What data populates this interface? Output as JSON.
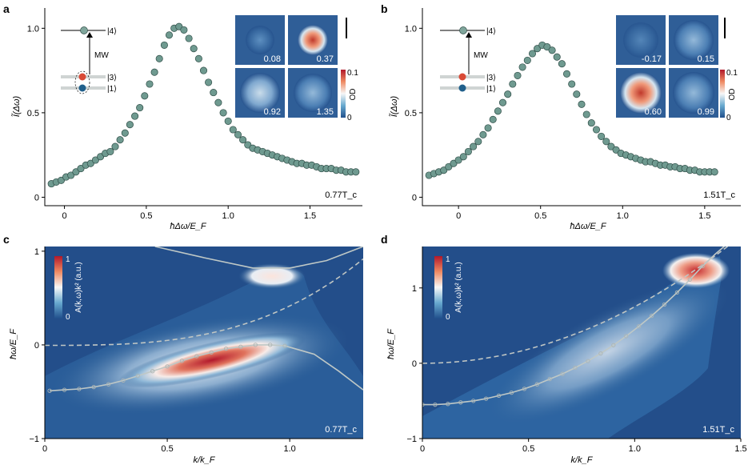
{
  "chart_data": [
    {
      "id": "a",
      "type": "scatter",
      "panel_label": "a",
      "xlabel": "ħΔω/E_F",
      "ylabel": "Ĩ(Δω)",
      "xlim": [
        -0.12,
        1.82
      ],
      "ylim": [
        -0.05,
        1.12
      ],
      "xticks": [
        0,
        0.5,
        1.0,
        1.5
      ],
      "xticklabels": [
        "0",
        "0.5",
        "1.0",
        "1.5"
      ],
      "yticks": [
        0,
        0.5,
        1.0
      ],
      "yticklabels": [
        "0",
        "0.5",
        "1.0"
      ],
      "temperature_label": "0.77T_c",
      "series": [
        {
          "x": [
            -0.08,
            -0.05,
            -0.02,
            0.01,
            0.04,
            0.07,
            0.1,
            0.13,
            0.16,
            0.19,
            0.22,
            0.25,
            0.28,
            0.31,
            0.34,
            0.37,
            0.4,
            0.43,
            0.46,
            0.49,
            0.52,
            0.55,
            0.58,
            0.61,
            0.64,
            0.67,
            0.7,
            0.73,
            0.76,
            0.79,
            0.82,
            0.85,
            0.88,
            0.91,
            0.94,
            0.97,
            1.0,
            1.03,
            1.06,
            1.09,
            1.12,
            1.15,
            1.18,
            1.21,
            1.24,
            1.27,
            1.3,
            1.33,
            1.36,
            1.39,
            1.42,
            1.45,
            1.48,
            1.51,
            1.54,
            1.57,
            1.6,
            1.63,
            1.66,
            1.69,
            1.72,
            1.75,
            1.78
          ],
          "y": [
            0.08,
            0.09,
            0.1,
            0.12,
            0.13,
            0.15,
            0.17,
            0.19,
            0.2,
            0.22,
            0.24,
            0.26,
            0.27,
            0.3,
            0.34,
            0.38,
            0.43,
            0.48,
            0.53,
            0.6,
            0.67,
            0.74,
            0.82,
            0.9,
            0.96,
            1.0,
            1.01,
            0.99,
            0.94,
            0.88,
            0.82,
            0.75,
            0.68,
            0.62,
            0.56,
            0.5,
            0.45,
            0.4,
            0.37,
            0.34,
            0.31,
            0.29,
            0.28,
            0.27,
            0.26,
            0.25,
            0.24,
            0.23,
            0.22,
            0.21,
            0.2,
            0.2,
            0.19,
            0.19,
            0.18,
            0.17,
            0.17,
            0.17,
            0.16,
            0.16,
            0.15,
            0.15,
            0.15
          ]
        }
      ],
      "inset_values": [
        "0.08",
        "0.37",
        "0.92",
        "1.35"
      ],
      "inset_colorbar": {
        "label": "OD",
        "ticks": [
          "0.1",
          "0"
        ]
      },
      "level_diagram": {
        "levels": [
          "|4⟩",
          "|3⟩",
          "|1⟩"
        ],
        "transition": "MW"
      }
    },
    {
      "id": "b",
      "type": "scatter",
      "panel_label": "b",
      "xlabel": "ħΔω/E_F",
      "ylabel": "Ĩ(Δω)",
      "xlim": [
        -0.22,
        1.72
      ],
      "ylim": [
        -0.05,
        1.12
      ],
      "xticks": [
        0,
        0.5,
        1.0,
        1.5
      ],
      "xticklabels": [
        "0",
        "0.5",
        "1.0",
        "1.5"
      ],
      "yticks": [
        0,
        0.5,
        1.0
      ],
      "yticklabels": [
        "0",
        "0.5",
        "1.0"
      ],
      "temperature_label": "1.51T_c",
      "series": [
        {
          "x": [
            -0.18,
            -0.15,
            -0.12,
            -0.09,
            -0.06,
            -0.03,
            0.0,
            0.03,
            0.06,
            0.09,
            0.12,
            0.15,
            0.18,
            0.21,
            0.24,
            0.27,
            0.3,
            0.33,
            0.36,
            0.39,
            0.42,
            0.45,
            0.48,
            0.51,
            0.54,
            0.57,
            0.6,
            0.63,
            0.66,
            0.69,
            0.72,
            0.75,
            0.78,
            0.81,
            0.84,
            0.87,
            0.9,
            0.93,
            0.96,
            0.99,
            1.02,
            1.05,
            1.08,
            1.11,
            1.14,
            1.17,
            1.2,
            1.23,
            1.26,
            1.29,
            1.32,
            1.35,
            1.38,
            1.41,
            1.44,
            1.47,
            1.5,
            1.53,
            1.56
          ],
          "y": [
            0.13,
            0.14,
            0.15,
            0.16,
            0.18,
            0.2,
            0.22,
            0.24,
            0.27,
            0.3,
            0.33,
            0.37,
            0.41,
            0.46,
            0.51,
            0.56,
            0.61,
            0.67,
            0.72,
            0.77,
            0.81,
            0.85,
            0.88,
            0.9,
            0.89,
            0.87,
            0.83,
            0.79,
            0.73,
            0.67,
            0.61,
            0.55,
            0.49,
            0.44,
            0.4,
            0.36,
            0.33,
            0.3,
            0.28,
            0.26,
            0.25,
            0.24,
            0.23,
            0.22,
            0.21,
            0.21,
            0.2,
            0.19,
            0.19,
            0.18,
            0.18,
            0.17,
            0.17,
            0.16,
            0.16,
            0.15,
            0.15,
            0.15,
            0.15
          ]
        }
      ],
      "inset_values": [
        "-0.17",
        "0.15",
        "0.60",
        "0.99"
      ],
      "inset_colorbar": {
        "label": "OD",
        "ticks": [
          "0.1",
          "0"
        ]
      },
      "level_diagram": {
        "levels": [
          "|4⟩",
          "|3⟩",
          "|1⟩"
        ],
        "transition": "MW"
      }
    },
    {
      "id": "c",
      "type": "heatmap",
      "panel_label": "c",
      "xlabel": "k/k_F",
      "ylabel": "ħω/E_F",
      "xlim": [
        0,
        1.3
      ],
      "ylim": [
        -1,
        1.05
      ],
      "xticks": [
        0,
        0.5,
        1.0
      ],
      "xticklabels": [
        "0",
        "0.5",
        "1.0"
      ],
      "yticks": [
        -1,
        0,
        1
      ],
      "yticklabels": [
        "−1",
        "0",
        "1"
      ],
      "temperature_label": "0.77T_c",
      "colorbar": {
        "label": "A(k,ω)k² (a.u.)",
        "ticks": [
          "1",
          "0"
        ]
      },
      "dispersion_points": {
        "k": [
          0.02,
          0.08,
          0.14,
          0.2,
          0.26,
          0.32,
          0.38,
          0.44,
          0.5,
          0.56,
          0.62,
          0.68,
          0.74,
          0.8,
          0.86,
          0.92,
          0.98
        ],
        "omega": [
          -0.49,
          -0.48,
          -0.47,
          -0.45,
          -0.42,
          -0.38,
          -0.33,
          -0.28,
          -0.23,
          -0.17,
          -0.12,
          -0.08,
          -0.04,
          -0.02,
          0.0,
          0.0,
          -0.01
        ]
      }
    },
    {
      "id": "d",
      "type": "heatmap",
      "panel_label": "d",
      "xlabel": "k/k_F",
      "ylabel": "ħω/E_F",
      "xlim": [
        0,
        1.5
      ],
      "ylim": [
        -1,
        1.55
      ],
      "xticks": [
        0,
        0.5,
        1.0,
        1.5
      ],
      "xticklabels": [
        "0",
        "0.5",
        "1.0",
        "1.5"
      ],
      "yticks": [
        -1,
        0,
        1
      ],
      "yticklabels": [
        "−1",
        "0",
        "1"
      ],
      "temperature_label": "1.51T_c",
      "colorbar": {
        "label": "A(k,ω)k² (a.u.)",
        "ticks": [
          "1",
          "0"
        ]
      },
      "dispersion_points": {
        "k": [
          0.0,
          0.06,
          0.12,
          0.18,
          0.24,
          0.3,
          0.36,
          0.42,
          0.48,
          0.54,
          0.6,
          0.66,
          0.72,
          0.78,
          0.84,
          0.9,
          0.96,
          1.02,
          1.08,
          1.14,
          1.2,
          1.26,
          1.32
        ],
        "omega": [
          -0.55,
          -0.55,
          -0.54,
          -0.52,
          -0.5,
          -0.47,
          -0.43,
          -0.39,
          -0.34,
          -0.28,
          -0.21,
          -0.14,
          -0.06,
          0.03,
          0.13,
          0.24,
          0.36,
          0.49,
          0.63,
          0.78,
          0.94,
          1.11,
          1.29
        ]
      }
    }
  ]
}
